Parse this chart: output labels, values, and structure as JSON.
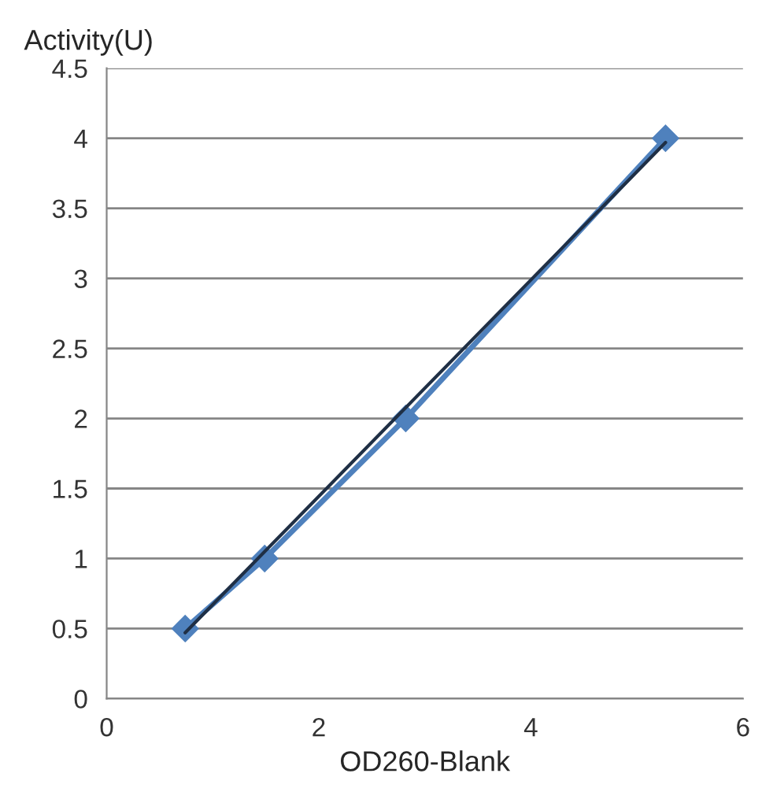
{
  "chart_data": {
    "type": "line",
    "xlabel": "OD260-Blank",
    "ylabel": "Activity(U)",
    "series": [
      {
        "color": "#4f81bd",
        "marker": "diamond",
        "x": [
          0.74,
          1.49,
          2.82,
          5.27
        ],
        "values": [
          0.5,
          1,
          2,
          4
        ]
      },
      {
        "color": "#1f2f45",
        "marker": "none",
        "x": [
          0.74,
          5.27
        ],
        "values": [
          0.47,
          3.97
        ]
      }
    ],
    "xlim": [
      0,
      6
    ],
    "xticks": [
      0,
      2,
      4,
      6
    ],
    "ylim": [
      0,
      4.5
    ],
    "yticks": [
      0,
      0.5,
      1,
      1.5,
      2,
      2.5,
      3,
      3.5,
      4,
      4.5
    ],
    "grid": "y"
  }
}
